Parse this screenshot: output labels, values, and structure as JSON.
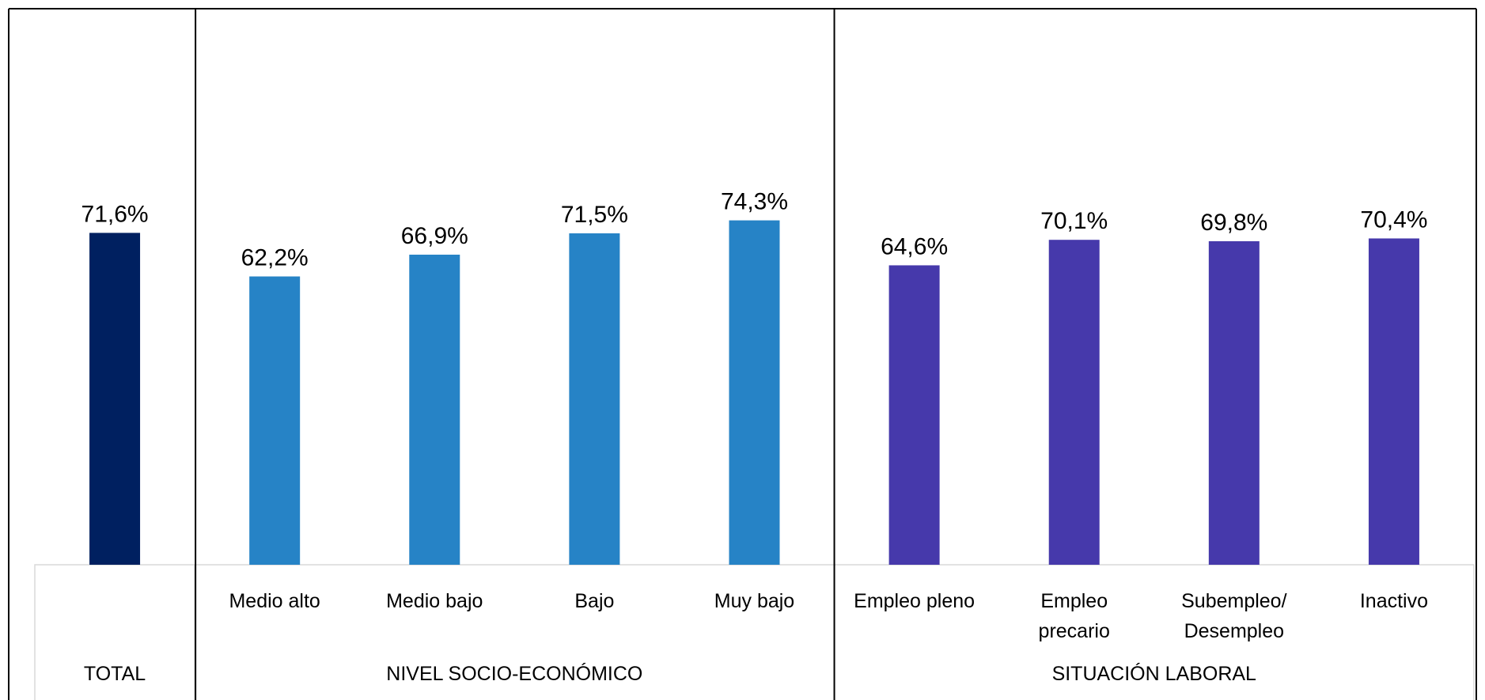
{
  "chart_data": {
    "type": "bar",
    "unit": "%",
    "ylim": [
      0,
      80
    ],
    "grid": false,
    "legend": "none",
    "categories": [
      "",
      "Medio alto",
      "Medio bajo",
      "Bajo",
      "Muy bajo",
      "Empleo pleno",
      "Empleo precario",
      "Subempleo/ Desempleo",
      "Inactivo"
    ],
    "category_lines": [
      [],
      [
        "Medio alto"
      ],
      [
        "Medio bajo"
      ],
      [
        "Bajo"
      ],
      [
        "Muy bajo"
      ],
      [
        "Empleo pleno"
      ],
      [
        "Empleo",
        "precario"
      ],
      [
        "Subempleo/",
        "Desempleo"
      ],
      [
        "Inactivo"
      ]
    ],
    "values": [
      71.6,
      62.2,
      66.9,
      71.5,
      74.3,
      64.6,
      70.1,
      69.8,
      70.4
    ],
    "value_labels": [
      "71,6%",
      "62,2%",
      "66,9%",
      "71,5%",
      "74,3%",
      "64,6%",
      "70,1%",
      "69,8%",
      "70,4%"
    ],
    "groups": [
      {
        "label": "TOTAL",
        "count": 1,
        "color": "#002060"
      },
      {
        "label": "NIVEL SOCIO-ECONÓMICO",
        "count": 4,
        "color": "#2683C6"
      },
      {
        "label": "SITUACIÓN LABORAL",
        "count": 4,
        "color": "#4639AB"
      }
    ]
  }
}
